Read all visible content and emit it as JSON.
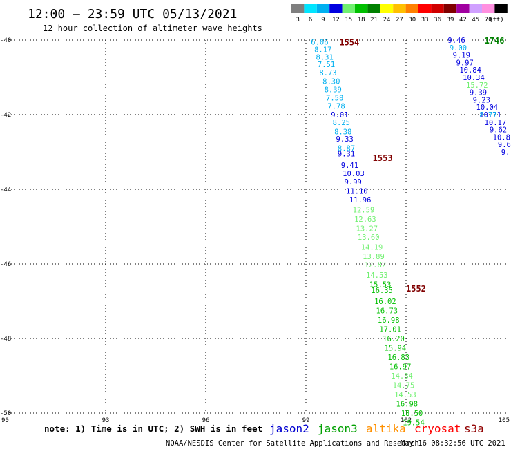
{
  "header": {
    "title": "12:00 – 23:59 UTC 05/13/2021",
    "subtitle": "12 hour collection of altimeter wave heights"
  },
  "color_legend": {
    "unit": "(ft)",
    "bins": [
      {
        "label": "3",
        "color": "#7f7f7f"
      },
      {
        "label": "6",
        "color": "#00e5ff"
      },
      {
        "label": "9",
        "color": "#00b0f0"
      },
      {
        "label": "12",
        "color": "#0000e0"
      },
      {
        "label": "15",
        "color": "#70f070"
      },
      {
        "label": "18",
        "color": "#00c000"
      },
      {
        "label": "21",
        "color": "#008000"
      },
      {
        "label": "24",
        "color": "#ffff00"
      },
      {
        "label": "27",
        "color": "#ffc000"
      },
      {
        "label": "30",
        "color": "#ff8000"
      },
      {
        "label": "33",
        "color": "#ff0000"
      },
      {
        "label": "36",
        "color": "#d00000"
      },
      {
        "label": "39",
        "color": "#800000"
      },
      {
        "label": "42",
        "color": "#a000a0"
      },
      {
        "label": "45",
        "color": "#d0a0ff"
      },
      {
        "label": "70",
        "color": "#ff90e0"
      },
      {
        "label": "",
        "color": "#000000"
      }
    ]
  },
  "footer": {
    "note": "note: 1) Time is in UTC; 2) SWH is in feet",
    "satellites": [
      {
        "name": "jason2",
        "color": "#0000d0"
      },
      {
        "name": "jason3",
        "color": "#00a000"
      },
      {
        "name": "altika",
        "color": "#ff9000"
      },
      {
        "name": "cryosat",
        "color": "#ff0000"
      },
      {
        "name": "s3a",
        "color": "#900000"
      }
    ],
    "credit": "NOAA/NESDIS Center for Satellite Applications and Research",
    "timestamp": "May 16 08:32:56 UTC 2021"
  },
  "chart_data": {
    "type": "scatter",
    "xlim": [
      90,
      105
    ],
    "ylim": [
      -50,
      -40
    ],
    "x_ticks": [
      "90",
      "93",
      "96",
      "99",
      "102",
      "105"
    ],
    "y_ticks": [
      "-40",
      "-42",
      "-44",
      "-46",
      "-48",
      "-50"
    ],
    "grid": true,
    "time_labels": [
      {
        "text": "1554",
        "x": 100.0,
        "y": -40.05,
        "color": "#800000"
      },
      {
        "text": "1553",
        "x": 101.0,
        "y": -43.15,
        "color": "#800000"
      },
      {
        "text": "1552",
        "x": 102.0,
        "y": -46.65,
        "color": "#800000"
      },
      {
        "text": "1746",
        "x": 104.35,
        "y": -40.0,
        "color": "#008000"
      },
      {
        "text": "17",
        "x": 105.4,
        "y": -41.85,
        "color": "#008000"
      }
    ],
    "series": [
      {
        "points": [
          {
            "v": "6.06",
            "x": 99.15,
            "y": -40.05,
            "color": "#00b0f0"
          },
          {
            "v": "8.17",
            "x": 99.25,
            "y": -40.25,
            "color": "#00b0f0"
          },
          {
            "v": "8.31",
            "x": 99.3,
            "y": -40.45,
            "color": "#00b0f0"
          },
          {
            "v": "7.51",
            "x": 99.35,
            "y": -40.65,
            "color": "#00b0f0"
          },
          {
            "v": "8.73",
            "x": 99.4,
            "y": -40.87,
            "color": "#00b0f0"
          },
          {
            "v": "8.30",
            "x": 99.5,
            "y": -41.1,
            "color": "#00b0f0"
          },
          {
            "v": "8.39",
            "x": 99.55,
            "y": -41.32,
            "color": "#00b0f0"
          },
          {
            "v": "7.58",
            "x": 99.6,
            "y": -41.55,
            "color": "#00b0f0"
          },
          {
            "v": "7.78",
            "x": 99.65,
            "y": -41.77,
            "color": "#00b0f0"
          },
          {
            "v": "9.01",
            "x": 99.75,
            "y": -42.0,
            "color": "#0000e0"
          },
          {
            "v": "8.25",
            "x": 99.8,
            "y": -42.2,
            "color": "#00b0f0"
          },
          {
            "v": "8.38",
            "x": 99.85,
            "y": -42.45,
            "color": "#00b0f0"
          },
          {
            "v": "9.33",
            "x": 99.9,
            "y": -42.65,
            "color": "#0000e0"
          },
          {
            "v": "8.87",
            "x": 99.95,
            "y": -42.9,
            "color": "#00b0f0"
          },
          {
            "v": "9.31",
            "x": 99.95,
            "y": -43.05,
            "color": "#0000e0"
          },
          {
            "v": "9.41",
            "x": 100.05,
            "y": -43.35,
            "color": "#0000e0"
          },
          {
            "v": "10.03",
            "x": 100.1,
            "y": -43.57,
            "color": "#0000e0"
          },
          {
            "v": "9.99",
            "x": 100.15,
            "y": -43.8,
            "color": "#0000e0"
          },
          {
            "v": "11.10",
            "x": 100.2,
            "y": -44.05,
            "color": "#0000e0"
          },
          {
            "v": "11.96",
            "x": 100.3,
            "y": -44.28,
            "color": "#0000e0"
          },
          {
            "v": "12.59",
            "x": 100.4,
            "y": -44.55,
            "color": "#70f070"
          },
          {
            "v": "12.63",
            "x": 100.45,
            "y": -44.8,
            "color": "#70f070"
          },
          {
            "v": "13.27",
            "x": 100.5,
            "y": -45.05,
            "color": "#70f070"
          },
          {
            "v": "13.60",
            "x": 100.55,
            "y": -45.28,
            "color": "#70f070"
          },
          {
            "v": "14.19",
            "x": 100.65,
            "y": -45.55,
            "color": "#70f070"
          },
          {
            "v": "13.89",
            "x": 100.7,
            "y": -45.8,
            "color": "#70f070"
          },
          {
            "v": "12.82",
            "x": 100.75,
            "y": -46.02,
            "color": "#70f070"
          },
          {
            "v": "14.53",
            "x": 100.8,
            "y": -46.3,
            "color": "#70f070"
          },
          {
            "v": "15.53",
            "x": 100.9,
            "y": -46.55,
            "color": "#00c000"
          },
          {
            "v": "16.35",
            "x": 100.95,
            "y": -46.7,
            "color": "#00c000"
          },
          {
            "v": "16.02",
            "x": 101.05,
            "y": -47.0,
            "color": "#00c000"
          },
          {
            "v": "16.73",
            "x": 101.1,
            "y": -47.25,
            "color": "#00c000"
          },
          {
            "v": "16.98",
            "x": 101.15,
            "y": -47.5,
            "color": "#00c000"
          },
          {
            "v": "17.01",
            "x": 101.2,
            "y": -47.75,
            "color": "#00c000"
          },
          {
            "v": "16.20",
            "x": 101.3,
            "y": -48.0,
            "color": "#00c000"
          },
          {
            "v": "15.94",
            "x": 101.35,
            "y": -48.25,
            "color": "#00c000"
          },
          {
            "v": "16.83",
            "x": 101.45,
            "y": -48.5,
            "color": "#00c000"
          },
          {
            "v": "16.97",
            "x": 101.5,
            "y": -48.75,
            "color": "#00c000"
          },
          {
            "v": "14.84",
            "x": 101.55,
            "y": -49.0,
            "color": "#70f070"
          },
          {
            "v": "14.75",
            "x": 101.6,
            "y": -49.25,
            "color": "#70f070"
          },
          {
            "v": "14.53",
            "x": 101.65,
            "y": -49.5,
            "color": "#70f070"
          },
          {
            "v": "16.98",
            "x": 101.7,
            "y": -49.75,
            "color": "#00c000"
          },
          {
            "v": "18.50",
            "x": 101.85,
            "y": -50.0,
            "color": "#00c000"
          },
          {
            "v": "19.54",
            "x": 101.9,
            "y": -50.25,
            "color": "#00c000"
          }
        ]
      },
      {
        "points": [
          {
            "v": "9.46",
            "x": 103.25,
            "y": -40.0,
            "color": "#0000e0"
          },
          {
            "v": "9.00",
            "x": 103.3,
            "y": -40.2,
            "color": "#00b0f0"
          },
          {
            "v": "9.19",
            "x": 103.4,
            "y": -40.4,
            "color": "#0000e0"
          },
          {
            "v": "9.97",
            "x": 103.5,
            "y": -40.6,
            "color": "#0000e0"
          },
          {
            "v": "10.84",
            "x": 103.6,
            "y": -40.8,
            "color": "#0000e0"
          },
          {
            "v": "10.34",
            "x": 103.7,
            "y": -41.0,
            "color": "#0000e0"
          },
          {
            "v": "15.72",
            "x": 103.8,
            "y": -41.2,
            "color": "#70f070"
          },
          {
            "v": "9.39",
            "x": 103.9,
            "y": -41.4,
            "color": "#0000e0"
          },
          {
            "v": "9.23",
            "x": 104.0,
            "y": -41.6,
            "color": "#0000e0"
          },
          {
            "v": "10.04",
            "x": 104.1,
            "y": -41.8,
            "color": "#0000e0"
          },
          {
            "v": "10.71",
            "x": 104.2,
            "y": -42.0,
            "color": "#0000e0"
          },
          {
            "v": "8.77",
            "x": 104.2,
            "y": -42.0,
            "color": "#00b0f0"
          },
          {
            "v": "10.17",
            "x": 104.35,
            "y": -42.2,
            "color": "#0000e0"
          },
          {
            "v": "9.62",
            "x": 104.5,
            "y": -42.4,
            "color": "#0000e0"
          },
          {
            "v": "10.81",
            "x": 104.6,
            "y": -42.6,
            "color": "#0000e0"
          },
          {
            "v": "9.6",
            "x": 104.75,
            "y": -42.8,
            "color": "#0000e0"
          },
          {
            "v": "9.",
            "x": 104.85,
            "y": -43.0,
            "color": "#0000e0"
          }
        ]
      }
    ]
  }
}
